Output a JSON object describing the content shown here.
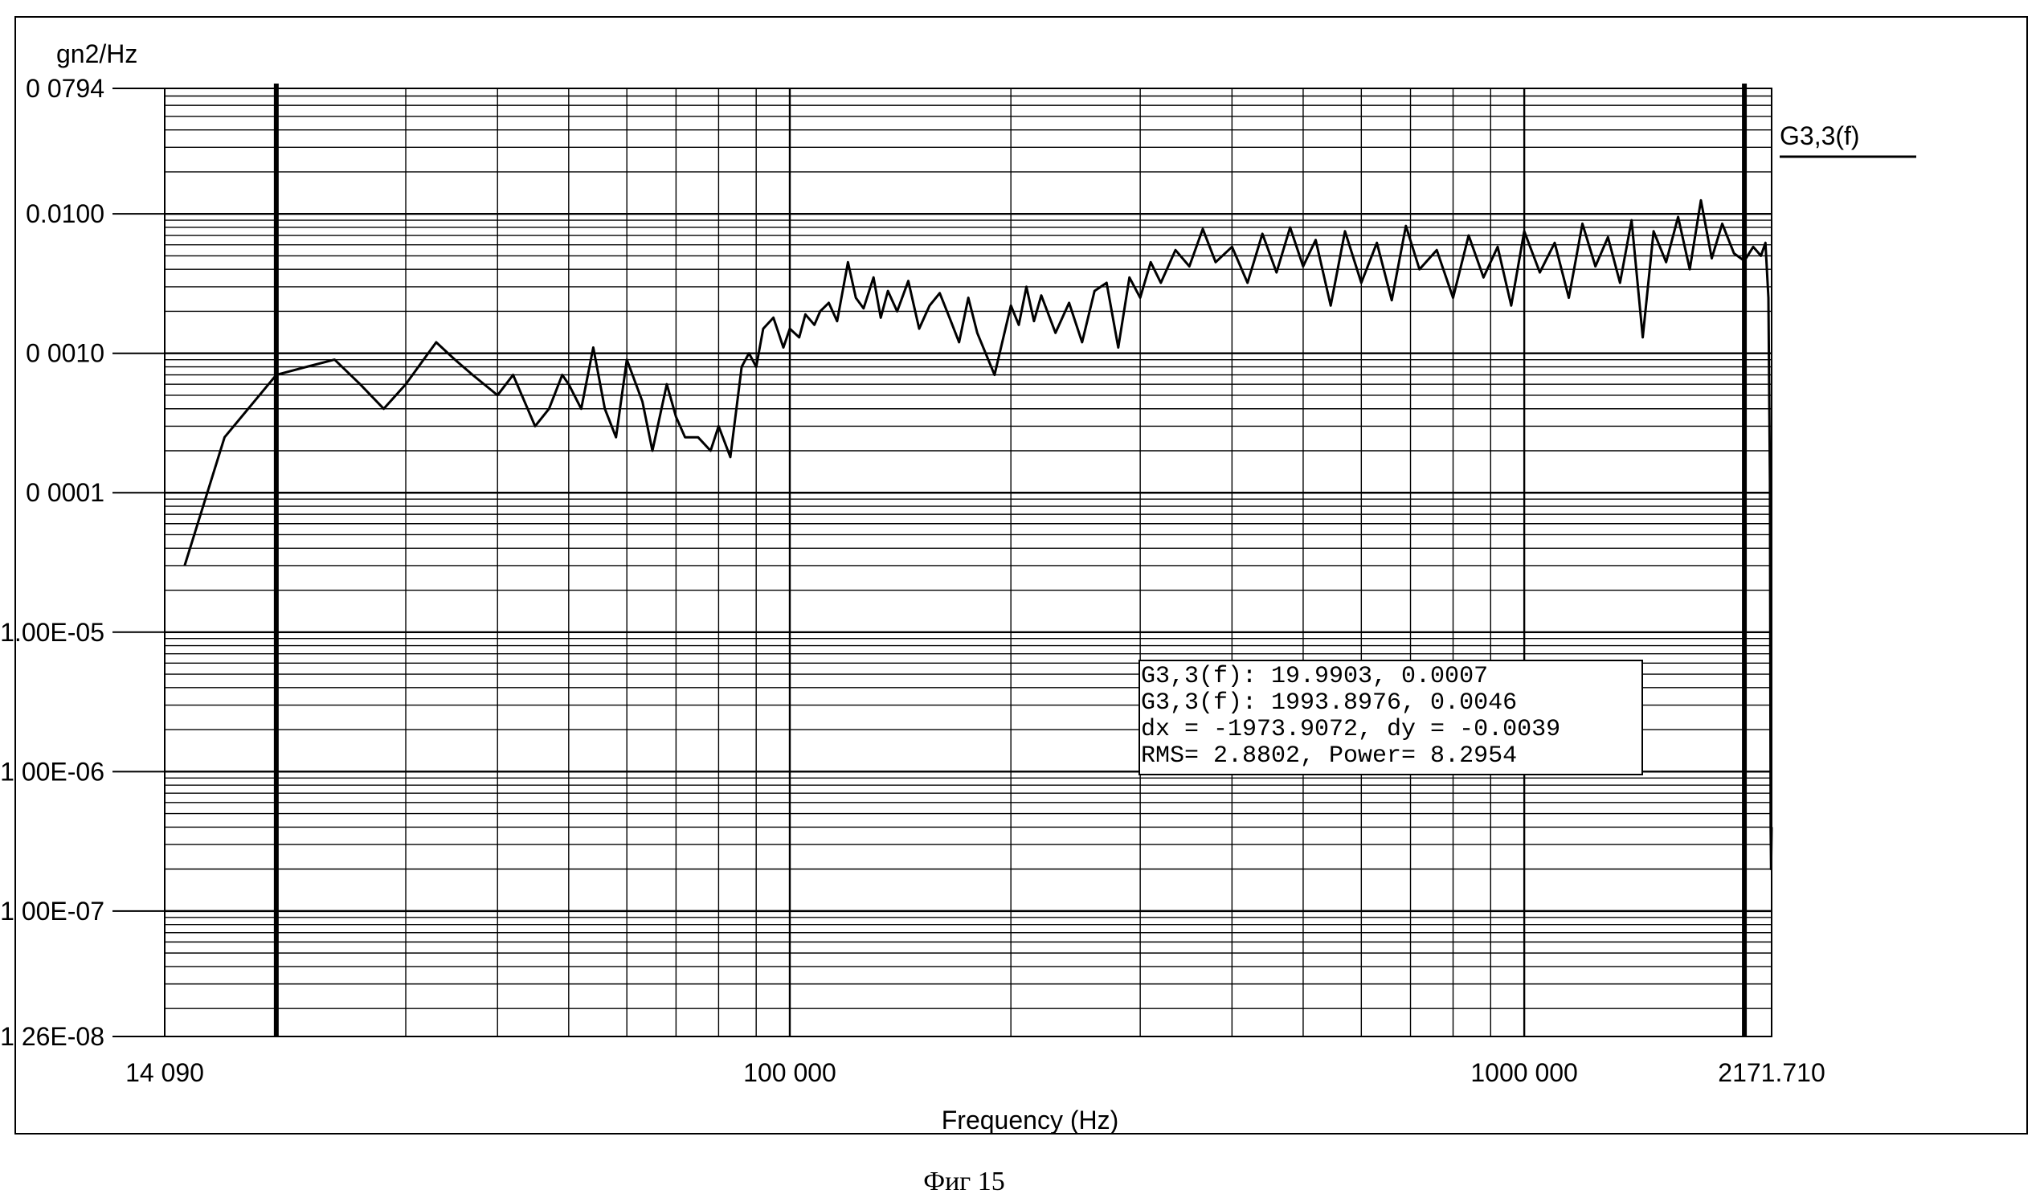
{
  "chart_data": {
    "type": "line",
    "ylabel": "gn2/Hz",
    "xlabel": "Frequency (Hz)",
    "y_scale": "log",
    "x_scale": "log",
    "ylim": [
      1.26e-08,
      0.0794
    ],
    "xlim": [
      14.09,
      2171.71
    ],
    "y_tick_labels": [
      "0 0794",
      "0.0100",
      "0 0010",
      "0 0001",
      "1.00E-05",
      "1 00E-06",
      "1 00E-07",
      "1 26E-08"
    ],
    "y_tick_values": [
      0.0794,
      0.01,
      0.001,
      0.0001,
      1e-05,
      1e-06,
      1e-07,
      1.26e-08
    ],
    "x_tick_labels": [
      "14 090",
      "100 000",
      "1000 000",
      "2171.710"
    ],
    "x_tick_values": [
      14.09,
      100,
      1000,
      2171.71
    ],
    "grid": true,
    "legend": {
      "position": "top-right",
      "entries": [
        "G3,3(f)"
      ]
    },
    "cursors_x": [
      19.9903,
      1993.8976
    ],
    "series": [
      {
        "name": "G3,3(f)",
        "x": [
          15,
          17,
          19.99,
          22,
          24,
          26,
          28,
          30,
          33,
          35,
          37,
          40,
          42,
          45,
          47,
          49,
          50,
          52,
          54,
          56,
          58,
          60,
          63,
          65,
          68,
          70,
          72,
          75,
          78,
          80,
          83,
          86,
          88,
          90,
          92,
          95,
          98,
          100,
          103,
          105,
          108,
          110,
          113,
          116,
          120,
          123,
          126,
          130,
          133,
          136,
          140,
          145,
          150,
          155,
          160,
          165,
          170,
          175,
          180,
          190,
          200,
          205,
          210,
          215,
          220,
          230,
          240,
          250,
          260,
          270,
          280,
          290,
          300,
          310,
          320,
          335,
          350,
          365,
          380,
          400,
          420,
          440,
          460,
          480,
          500,
          520,
          545,
          570,
          600,
          630,
          660,
          690,
          720,
          760,
          800,
          840,
          880,
          920,
          960,
          1000,
          1050,
          1100,
          1150,
          1200,
          1250,
          1300,
          1350,
          1400,
          1450,
          1500,
          1560,
          1620,
          1680,
          1740,
          1800,
          1860,
          1930,
          1993.9,
          2050,
          2100,
          2130,
          2150,
          2160,
          2165,
          2168,
          2171.71
        ],
        "y": [
          3e-05,
          0.00025,
          0.0007,
          0.0008,
          0.0009,
          0.0006,
          0.0004,
          0.0006,
          0.0012,
          0.0009,
          0.0007,
          0.0005,
          0.0007,
          0.0003,
          0.0004,
          0.0007,
          0.0006,
          0.0004,
          0.0011,
          0.0004,
          0.00025,
          0.0009,
          0.00045,
          0.0002,
          0.0006,
          0.00035,
          0.00025,
          0.00025,
          0.0002,
          0.0003,
          0.00018,
          0.0008,
          0.001,
          0.0008,
          0.0015,
          0.0018,
          0.0011,
          0.0015,
          0.0013,
          0.0019,
          0.0016,
          0.002,
          0.0023,
          0.0017,
          0.0045,
          0.0025,
          0.0021,
          0.0035,
          0.0018,
          0.0028,
          0.002,
          0.0033,
          0.0015,
          0.0022,
          0.0027,
          0.0018,
          0.0012,
          0.0025,
          0.0014,
          0.0007,
          0.0022,
          0.0016,
          0.003,
          0.0017,
          0.0026,
          0.0014,
          0.0023,
          0.0012,
          0.0028,
          0.0032,
          0.0011,
          0.0035,
          0.0025,
          0.0045,
          0.0032,
          0.0055,
          0.0042,
          0.0078,
          0.0045,
          0.0058,
          0.0032,
          0.0072,
          0.0038,
          0.008,
          0.0042,
          0.0065,
          0.0022,
          0.0075,
          0.0032,
          0.0062,
          0.0024,
          0.0082,
          0.004,
          0.0055,
          0.0025,
          0.007,
          0.0035,
          0.0058,
          0.0022,
          0.0075,
          0.0038,
          0.0062,
          0.0025,
          0.0085,
          0.0042,
          0.0068,
          0.0032,
          0.009,
          0.0013,
          0.0075,
          0.0045,
          0.0095,
          0.004,
          0.0125,
          0.0048,
          0.0085,
          0.0052,
          0.0046,
          0.0058,
          0.005,
          0.0062,
          0.0025,
          0.00012,
          4e-07,
          2e-07,
          4e-07
        ]
      }
    ],
    "readout": [
      "G3,3(f): 19.9903, 0.0007",
      "G3,3(f): 1993.8976, 0.0046",
      "dx = -1973.9072, dy = -0.0039",
      "RMS= 2.8802, Power= 8.2954"
    ]
  },
  "caption": "Фиг 15"
}
